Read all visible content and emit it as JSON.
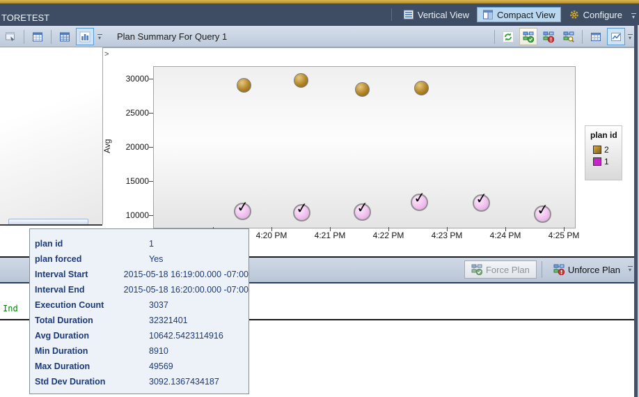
{
  "titlebar": {
    "title": "TORETEST",
    "buttons": [
      {
        "label": "Vertical View",
        "icon": "vertical-view-icon",
        "selected": false
      },
      {
        "label": "Compact View",
        "icon": "compact-view-icon",
        "selected": true
      },
      {
        "label": "Configure",
        "icon": "gear-icon",
        "selected": false
      }
    ]
  },
  "left_toolbar": {
    "buttons": [
      {
        "icon": "query-window-icon",
        "selected": false,
        "sep_after": true
      },
      {
        "icon": "results-grid-icon",
        "selected": false,
        "sep_after": true
      },
      {
        "icon": "plans-grid-icon",
        "selected": false,
        "sep_after": false
      },
      {
        "icon": "bar-chart-icon",
        "selected": true,
        "sep_after": false
      }
    ]
  },
  "summary_toolbar": {
    "title": "Plan Summary For Query 1",
    "buttons": [
      {
        "icon": "refresh-icon",
        "style": "plain",
        "sep_before": true
      },
      {
        "icon": "force-plan-icon",
        "style": "warm",
        "sep_before": false
      },
      {
        "icon": "unforce-plan-icon",
        "style": "plain",
        "sep_before": false
      },
      {
        "icon": "compare-plans-icon",
        "style": "plain",
        "sep_before": false
      },
      {
        "icon": "grid-view-icon",
        "style": "plain",
        "sep_before": true
      },
      {
        "icon": "line-chart-icon",
        "style": "blue",
        "sep_before": false
      }
    ]
  },
  "chart_data": {
    "type": "scatter",
    "title": "Plan Summary For Query 1",
    "xlabel": "",
    "ylabel": "Avg",
    "x_axis": {
      "unit": "time of day",
      "range_minutes_after_4pm": [
        17.98,
        25.18
      ],
      "ticks": [
        {
          "t": 19,
          "label": ""
        },
        {
          "t": 20,
          "label": "4:20 PM"
        },
        {
          "t": 21,
          "label": "4:21 PM"
        },
        {
          "t": 22,
          "label": "4:22 PM"
        },
        {
          "t": 23,
          "label": "4:23 PM"
        },
        {
          "t": 24,
          "label": "4:24 PM"
        },
        {
          "t": 25,
          "label": "4:25 PM"
        }
      ]
    },
    "y_axis": {
      "range": [
        8300,
        31830
      ],
      "ticks": [
        10000,
        15000,
        20000,
        25000,
        30000
      ]
    },
    "grid": false,
    "legend": {
      "title": "plan id",
      "position": "right",
      "entries": [
        {
          "label": "2",
          "color": "#b08428"
        },
        {
          "label": "1",
          "color": "#cc22cc"
        }
      ]
    },
    "series": [
      {
        "name": "2",
        "marker": "circle",
        "color": "#b08428",
        "forced": false,
        "points": [
          {
            "t": 19.53,
            "v": 29100
          },
          {
            "t": 20.5,
            "v": 29800
          },
          {
            "t": 21.55,
            "v": 28500
          },
          {
            "t": 22.56,
            "v": 28700
          }
        ]
      },
      {
        "name": "1",
        "marker": "circle-check",
        "color": "#cc22cc",
        "forced": true,
        "points": [
          {
            "t": 19.5,
            "v": 10642
          },
          {
            "t": 20.52,
            "v": 10450
          },
          {
            "t": 21.55,
            "v": 10550
          },
          {
            "t": 22.53,
            "v": 11970
          },
          {
            "t": 23.58,
            "v": 11870
          },
          {
            "t": 24.63,
            "v": 10250
          }
        ]
      }
    ]
  },
  "force_toolbar": {
    "buttons": [
      {
        "label": "Force Plan",
        "icon": "force-plan-icon",
        "enabled": false
      },
      {
        "label": "Unforce Plan",
        "icon": "unforce-plan-icon",
        "enabled": true
      }
    ]
  },
  "query_pane": {
    "visible_text": "Ind"
  },
  "tooltip": {
    "rows": [
      {
        "label": "plan id",
        "value": "1"
      },
      {
        "label": "plan forced",
        "value": "Yes"
      },
      {
        "label": "Interval Start",
        "value": "2015-05-18 16:19:00.000 -07:00"
      },
      {
        "label": "Interval End",
        "value": "2015-05-18 16:20:00.000 -07:00"
      },
      {
        "label": "Execution Count",
        "value": "3037"
      },
      {
        "label": "Total Duration",
        "value": "32321401"
      },
      {
        "label": "Avg Duration",
        "value": "10642.5423114916"
      },
      {
        "label": "Min Duration",
        "value": "8910"
      },
      {
        "label": "Max Duration",
        "value": "49569"
      },
      {
        "label": "Std Dev Duration",
        "value": "3092.1367434187"
      }
    ]
  }
}
